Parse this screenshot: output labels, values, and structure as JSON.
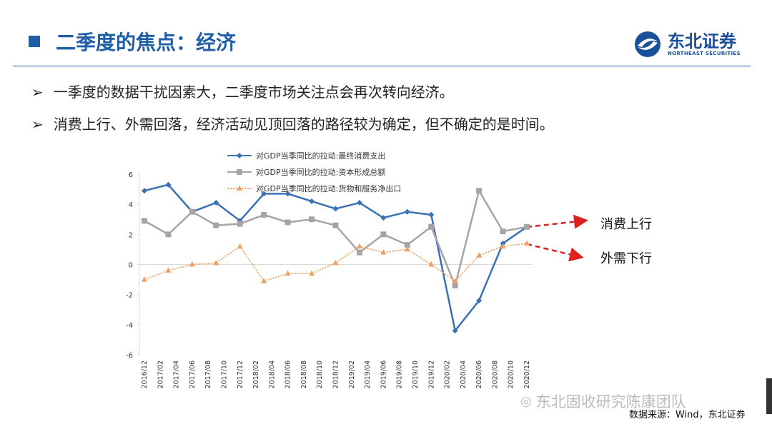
{
  "header": {
    "title": "二季度的焦点：经济",
    "logo_name": "东北证券",
    "logo_english": "NORTHEAST SECURITIES"
  },
  "bullets": [
    "一季度的数据干扰因素大，二季度市场关注点会再次转向经济。",
    "消费上行、外需回落，经济活动见顶回落的路径较为确定，但不确定的是时间。"
  ],
  "source": "数据来源：Wind，东北证券",
  "watermark": "东北固收研究陈康团队",
  "chart_data": {
    "type": "line",
    "xticks": [
      "2016/12",
      "2017/02",
      "2017/04",
      "2017/06",
      "2017/08",
      "2017/10",
      "2017/12",
      "2018/02",
      "2018/04",
      "2018/06",
      "2018/08",
      "2018/10",
      "2018/12",
      "2019/02",
      "2019/04",
      "2019/06",
      "2019/08",
      "2019/10",
      "2019/12",
      "2020/02",
      "2020/04",
      "2020/06",
      "2020/08",
      "2020/10",
      "2020/12"
    ],
    "x": [
      "2016/12",
      "2017/03",
      "2017/06",
      "2017/09",
      "2017/12",
      "2018/03",
      "2018/06",
      "2018/09",
      "2018/12",
      "2019/03",
      "2019/06",
      "2019/09",
      "2019/12",
      "2020/03",
      "2020/06",
      "2020/09",
      "2020/12"
    ],
    "series": [
      {
        "name": "对GDP当季同比的拉动:最终消费支出",
        "color": "#3a70b5",
        "marker": "diamond",
        "style": "solid",
        "values": [
          4.9,
          5.3,
          3.5,
          4.1,
          2.9,
          4.7,
          4.7,
          4.2,
          3.7,
          4.1,
          3.1,
          3.5,
          3.3,
          -4.4,
          -2.4,
          1.4,
          2.5
        ]
      },
      {
        "name": "对GDP当季同比的拉动:资本形成总额",
        "color": "#a5a5a5",
        "marker": "square",
        "style": "solid",
        "values": [
          2.9,
          2.0,
          3.5,
          2.6,
          2.7,
          3.3,
          2.8,
          3.0,
          2.6,
          0.8,
          2.0,
          1.3,
          2.5,
          -1.4,
          4.9,
          2.2,
          2.5
        ]
      },
      {
        "name": "对GDP当季同比的拉动:货物和服务净出口",
        "color": "#f0a060",
        "marker": "triangle",
        "style": "dotted",
        "values": [
          -1.0,
          -0.4,
          0.0,
          0.1,
          1.2,
          -1.1,
          -0.6,
          -0.6,
          0.1,
          1.2,
          0.8,
          1.0,
          0.0,
          -1.1,
          0.6,
          1.2,
          1.4
        ]
      }
    ],
    "ylim": [
      -6,
      6
    ],
    "yticks": [
      -6,
      -4,
      -2,
      0,
      2,
      4,
      6
    ],
    "grid": false,
    "legend": "top",
    "annotations": [
      "消费上行",
      "外需下行"
    ]
  }
}
